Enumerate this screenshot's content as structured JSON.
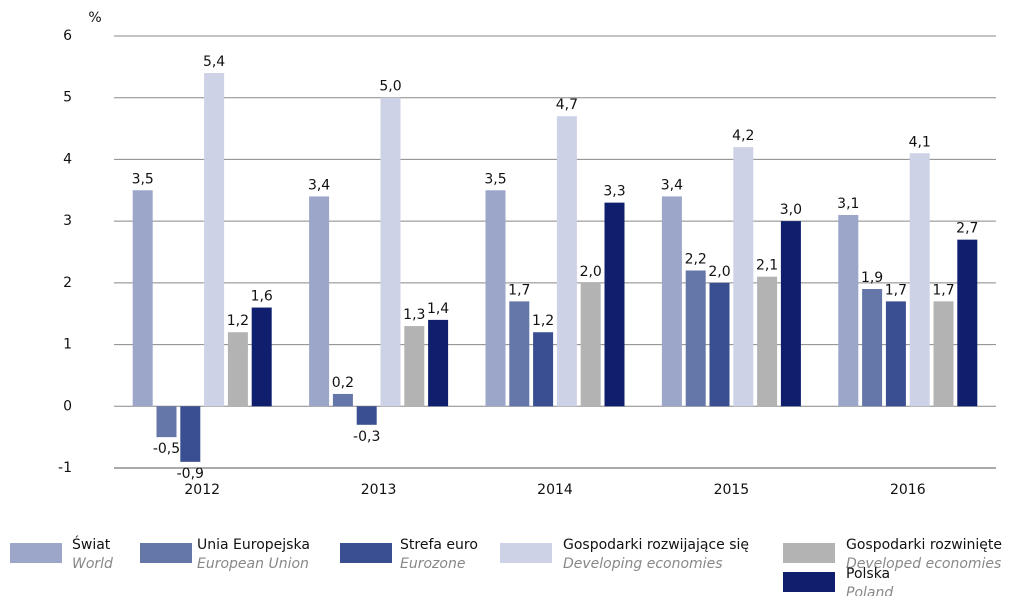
{
  "chart_data": {
    "type": "bar",
    "unit_label": "%",
    "categories": [
      "2012",
      "2013",
      "2014",
      "2015",
      "2016"
    ],
    "ylim": [
      -1,
      6
    ],
    "yticks": [
      -1,
      0,
      1,
      2,
      3,
      4,
      5,
      6
    ],
    "grid": true,
    "series": [
      {
        "name": "Świat",
        "name_en": "World",
        "color": "#9ba6c9",
        "values": [
          3.5,
          3.4,
          3.5,
          3.4,
          3.1
        ],
        "value_labels": [
          "3,5",
          "3,4",
          "3,5",
          "3,4",
          "3,1"
        ]
      },
      {
        "name": "Unia Europejska",
        "name_en": "European Union",
        "color": "#6577a8",
        "values": [
          -0.5,
          0.2,
          1.7,
          2.2,
          1.9
        ],
        "value_labels": [
          "-0,5",
          "0,2",
          "1,7",
          "2,2",
          "1,9"
        ]
      },
      {
        "name": "Strefa euro",
        "name_en": "Eurozone",
        "color": "#3a4f91",
        "values": [
          -0.9,
          -0.3,
          1.2,
          2.0,
          1.7
        ],
        "value_labels": [
          "-0,9",
          "-0,3",
          "1,2",
          "2,0",
          "1,7"
        ]
      },
      {
        "name": "Gospodarki rozwijające się",
        "name_en": "Developing economies",
        "color": "#cdd2e6",
        "values": [
          5.4,
          5.0,
          4.7,
          4.2,
          4.1
        ],
        "value_labels": [
          "5,4",
          "5,0",
          "4,7",
          "4,2",
          "4,1"
        ]
      },
      {
        "name": "Gospodarki rozwinięte",
        "name_en": "Developed economies",
        "color": "#b3b3b3",
        "values": [
          1.2,
          1.3,
          2.0,
          2.1,
          1.7
        ],
        "value_labels": [
          "1,2",
          "1,3",
          "2,0",
          "2,1",
          "1,7"
        ]
      },
      {
        "name": "Polska",
        "name_en": "Poland",
        "color": "#0f1f6e",
        "values": [
          1.6,
          1.4,
          3.3,
          3.0,
          2.7
        ],
        "value_labels": [
          "1,6",
          "1,4",
          "3,3",
          "3,0",
          "2,7"
        ]
      }
    ]
  }
}
